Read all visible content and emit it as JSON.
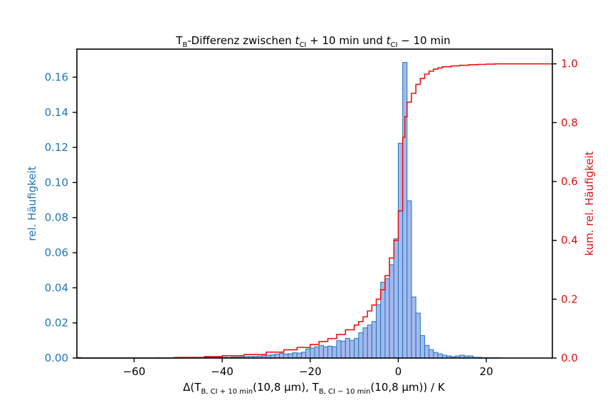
{
  "chart_data": {
    "type": "histogram",
    "title": {
      "prefix": "T",
      "sub1": "B",
      "mid": "-Differenz zwischen ",
      "t1": "t",
      "t1sub": "CI",
      "plus": " + 10 min und ",
      "t2": "t",
      "t2sub": "CI",
      "minus": " − 10 min"
    },
    "xlabel": {
      "p1": "Δ(T",
      "s1": "B, CI + 10 min",
      "p2": "(10,8 μm), T",
      "s2": "B, CI − 10 min",
      "p3": "(10,8 μm)) / K"
    },
    "ylabel_left": "rel. Häufigkeit",
    "ylabel_right": "kum. rel. Häufigkeit",
    "xlim": [
      -73,
      35
    ],
    "ylim_left": [
      0,
      0.176
    ],
    "ylim_right": [
      0,
      1.05
    ],
    "x_ticks": [
      -60,
      -40,
      -20,
      0,
      20
    ],
    "x_tick_labels": [
      "−60",
      "−40",
      "−20",
      "0",
      "20"
    ],
    "y_left_ticks": [
      0,
      0.02,
      0.04,
      0.06,
      0.08,
      0.1,
      0.12,
      0.14,
      0.16
    ],
    "y_left_tick_labels": [
      "0.00",
      "0.02",
      "0.04",
      "0.06",
      "0.08",
      "0.10",
      "0.12",
      "0.14",
      "0.16"
    ],
    "y_right_ticks": [
      0,
      0.2,
      0.4,
      0.6,
      0.8,
      1.0
    ],
    "y_right_tick_labels": [
      "0.0",
      "0.2",
      "0.4",
      "0.6",
      "0.8",
      "1.0"
    ],
    "bin_width": 1,
    "bin_starts": [
      -73,
      -72,
      -71,
      -70,
      -69,
      -68,
      -67,
      -66,
      -65,
      -64,
      -63,
      -62,
      -61,
      -60,
      -59,
      -58,
      -57,
      -56,
      -55,
      -54,
      -53,
      -52,
      -51,
      -50,
      -49,
      -48,
      -47,
      -46,
      -45,
      -44,
      -43,
      -42,
      -41,
      -40,
      -39,
      -38,
      -37,
      -36,
      -35,
      -34,
      -33,
      -32,
      -31,
      -30,
      -29,
      -28,
      -27,
      -26,
      -25,
      -24,
      -23,
      -22,
      -21,
      -20,
      -19,
      -18,
      -17,
      -16,
      -15,
      -14,
      -13,
      -12,
      -11,
      -10,
      -9,
      -8,
      -7,
      -6,
      -5,
      -4,
      -3,
      -2,
      -1,
      0,
      1,
      2,
      3,
      4,
      5,
      6,
      7,
      8,
      9,
      10,
      11,
      12,
      13,
      14,
      15,
      16,
      17,
      18,
      19,
      20,
      21,
      22,
      23,
      24,
      25,
      26,
      27,
      28,
      29,
      30,
      31,
      32,
      33,
      34
    ],
    "rel_frequency": [
      0.0003,
      0,
      0,
      0,
      0,
      0,
      0,
      0,
      0,
      0,
      0,
      0,
      0,
      0,
      0,
      0,
      0,
      0,
      0.0002,
      0,
      0,
      0,
      0.0004,
      0,
      0.0002,
      0,
      0.0003,
      0.0002,
      0.0003,
      0.0004,
      0.0003,
      0.0004,
      0.0004,
      0.0005,
      0.0004,
      0.0006,
      0.0006,
      0.0007,
      0.0008,
      0.0009,
      0.0009,
      0.0011,
      0.0013,
      0.0016,
      0.0018,
      0.0022,
      0.0027,
      0.0023,
      0.0025,
      0.003,
      0.0028,
      0.0033,
      0.0052,
      0.0056,
      0.0064,
      0.0072,
      0.0064,
      0.0068,
      0.0064,
      0.0099,
      0.0096,
      0.0112,
      0.01,
      0.0112,
      0.0144,
      0.0172,
      0.0188,
      0.0208,
      0.0304,
      0.0432,
      0.0452,
      0.0532,
      0.068,
      0.1224,
      0.1684,
      0.0896,
      0.0348,
      0.0256,
      0.0128,
      0.0072,
      0.0048,
      0.0032,
      0.0024,
      0.0016,
      0.0012,
      0.0008,
      0.0012,
      0.0016,
      0.0012,
      0.0012,
      0.0004,
      0.0004,
      0.0002,
      0.0002,
      0.0002,
      0.0002,
      0.0001,
      0,
      0,
      0,
      0,
      0,
      0,
      0,
      0,
      0,
      0,
      0
    ],
    "cumulative": [
      0.0003,
      0.0003,
      0.0003,
      0.0003,
      0.0003,
      0.0003,
      0.0003,
      0.0003,
      0.0003,
      0.0003,
      0.0003,
      0.0003,
      0.0003,
      0.0003,
      0.0003,
      0.0003,
      0.0003,
      0.0003,
      0.0005,
      0.0005,
      0.0005,
      0.0005,
      0.0009,
      0.0009,
      0.0011,
      0.0011,
      0.0014,
      0.0016,
      0.0019,
      0.0023,
      0.0026,
      0.003,
      0.0034,
      0.0039,
      0.0043,
      0.0049,
      0.0055,
      0.0062,
      0.007,
      0.0079,
      0.0088,
      0.0099,
      0.0112,
      0.0128,
      0.0146,
      0.0168,
      0.0195,
      0.0218,
      0.0243,
      0.0273,
      0.0301,
      0.0334,
      0.0386,
      0.0442,
      0.0506,
      0.0578,
      0.0642,
      0.071,
      0.0774,
      0.0873,
      0.0969,
      0.1081,
      0.1181,
      0.1293,
      0.1437,
      0.1609,
      0.1797,
      0.2005,
      0.2309,
      0.2741,
      0.3193,
      0.3725,
      0.4405,
      0.5629,
      0.7313,
      0.8209,
      0.8557,
      0.8813,
      0.8941,
      0.9013,
      0.9061,
      0.9093,
      0.9117,
      0.9133,
      0.9145,
      0.9153,
      0.9165,
      0.9181,
      0.9193,
      0.9205,
      0.9209,
      0.9213,
      0.9215,
      0.9217,
      0.9219,
      0.9221,
      0.9222,
      0.9222,
      0.9222,
      0.9222,
      0.9222,
      0.9222,
      0.9222,
      0.9222,
      0.9222,
      0.9222,
      0.9222,
      0.9222
    ],
    "cdf_note_steps": [
      [
        -73,
        0
      ],
      [
        -50,
        0.002
      ],
      [
        -44,
        0.005
      ],
      [
        -40,
        0.008
      ],
      [
        -35,
        0.012
      ],
      [
        -30,
        0.02
      ],
      [
        -26,
        0.028
      ],
      [
        -23,
        0.036
      ],
      [
        -20,
        0.046
      ],
      [
        -18,
        0.056
      ],
      [
        -16,
        0.066
      ],
      [
        -14,
        0.08
      ],
      [
        -12,
        0.096
      ],
      [
        -10,
        0.112
      ],
      [
        -9,
        0.124
      ],
      [
        -8,
        0.14
      ],
      [
        -7,
        0.16
      ],
      [
        -6,
        0.18
      ],
      [
        -5,
        0.2
      ],
      [
        -4,
        0.232
      ],
      [
        -3,
        0.28
      ],
      [
        -2,
        0.34
      ],
      [
        -1,
        0.4
      ],
      [
        0,
        0.5
      ],
      [
        1,
        0.75
      ],
      [
        1.5,
        0.82
      ],
      [
        2,
        0.87
      ],
      [
        3,
        0.9
      ],
      [
        4,
        0.93
      ],
      [
        5,
        0.95
      ],
      [
        6,
        0.965
      ],
      [
        7,
        0.975
      ],
      [
        8,
        0.982
      ],
      [
        9,
        0.986
      ],
      [
        10,
        0.99
      ],
      [
        12,
        0.993
      ],
      [
        14,
        0.995
      ],
      [
        16,
        0.997
      ],
      [
        18,
        0.998
      ],
      [
        20,
        0.999
      ],
      [
        22,
        1.0
      ],
      [
        35,
        1.0
      ]
    ],
    "colors": {
      "bar_fill": "#a6b8ef",
      "bar_edge": "#1f77b4",
      "cdf_line": "#ee1111",
      "left_axis": "#1f77b4",
      "right_axis": "#dd1111",
      "axis": "#000000"
    },
    "grid": false
  }
}
